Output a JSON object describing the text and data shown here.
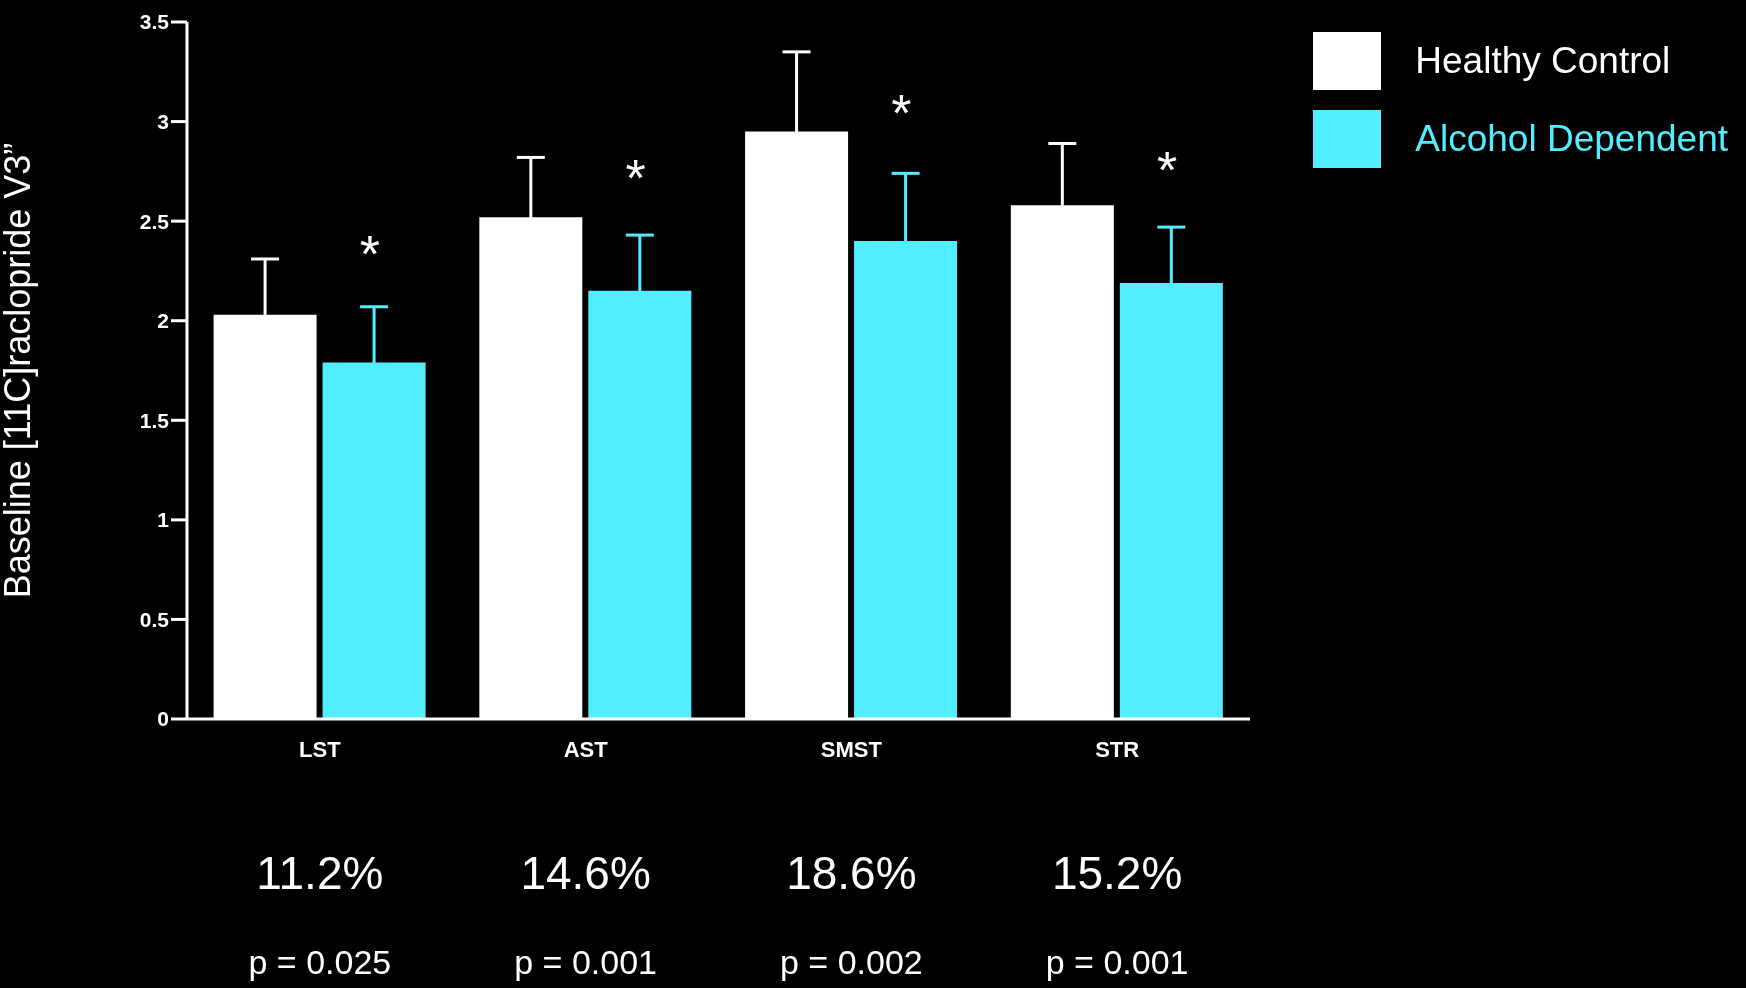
{
  "chart_data": {
    "type": "bar",
    "ylabel": "Baseline [11C]raclopride V3”",
    "categories": [
      "LST",
      "AST",
      "SMST",
      "STR"
    ],
    "series": [
      {
        "name": "Healthy Control",
        "color": "#ffffff",
        "values": [
          2.03,
          2.52,
          2.95,
          2.58
        ],
        "errors": [
          0.28,
          0.3,
          0.4,
          0.31
        ]
      },
      {
        "name": "Alcohol Dependent",
        "color": "#52eeff",
        "values": [
          1.79,
          2.15,
          2.4,
          2.19
        ],
        "errors": [
          0.28,
          0.28,
          0.34,
          0.28
        ]
      }
    ],
    "ylim": [
      0,
      3.5
    ],
    "yticks": [
      0,
      0.5,
      1,
      1.5,
      2,
      2.5,
      3,
      3.5
    ],
    "grid": false,
    "legend": "top right",
    "annotations": [
      "*",
      "*",
      "*",
      "*",
      "11.2%",
      "14.6%",
      "18.6%",
      "15.2%",
      "p = 0.025",
      "p = 0.001",
      "p = 0.002",
      "p = 0.001"
    ]
  }
}
